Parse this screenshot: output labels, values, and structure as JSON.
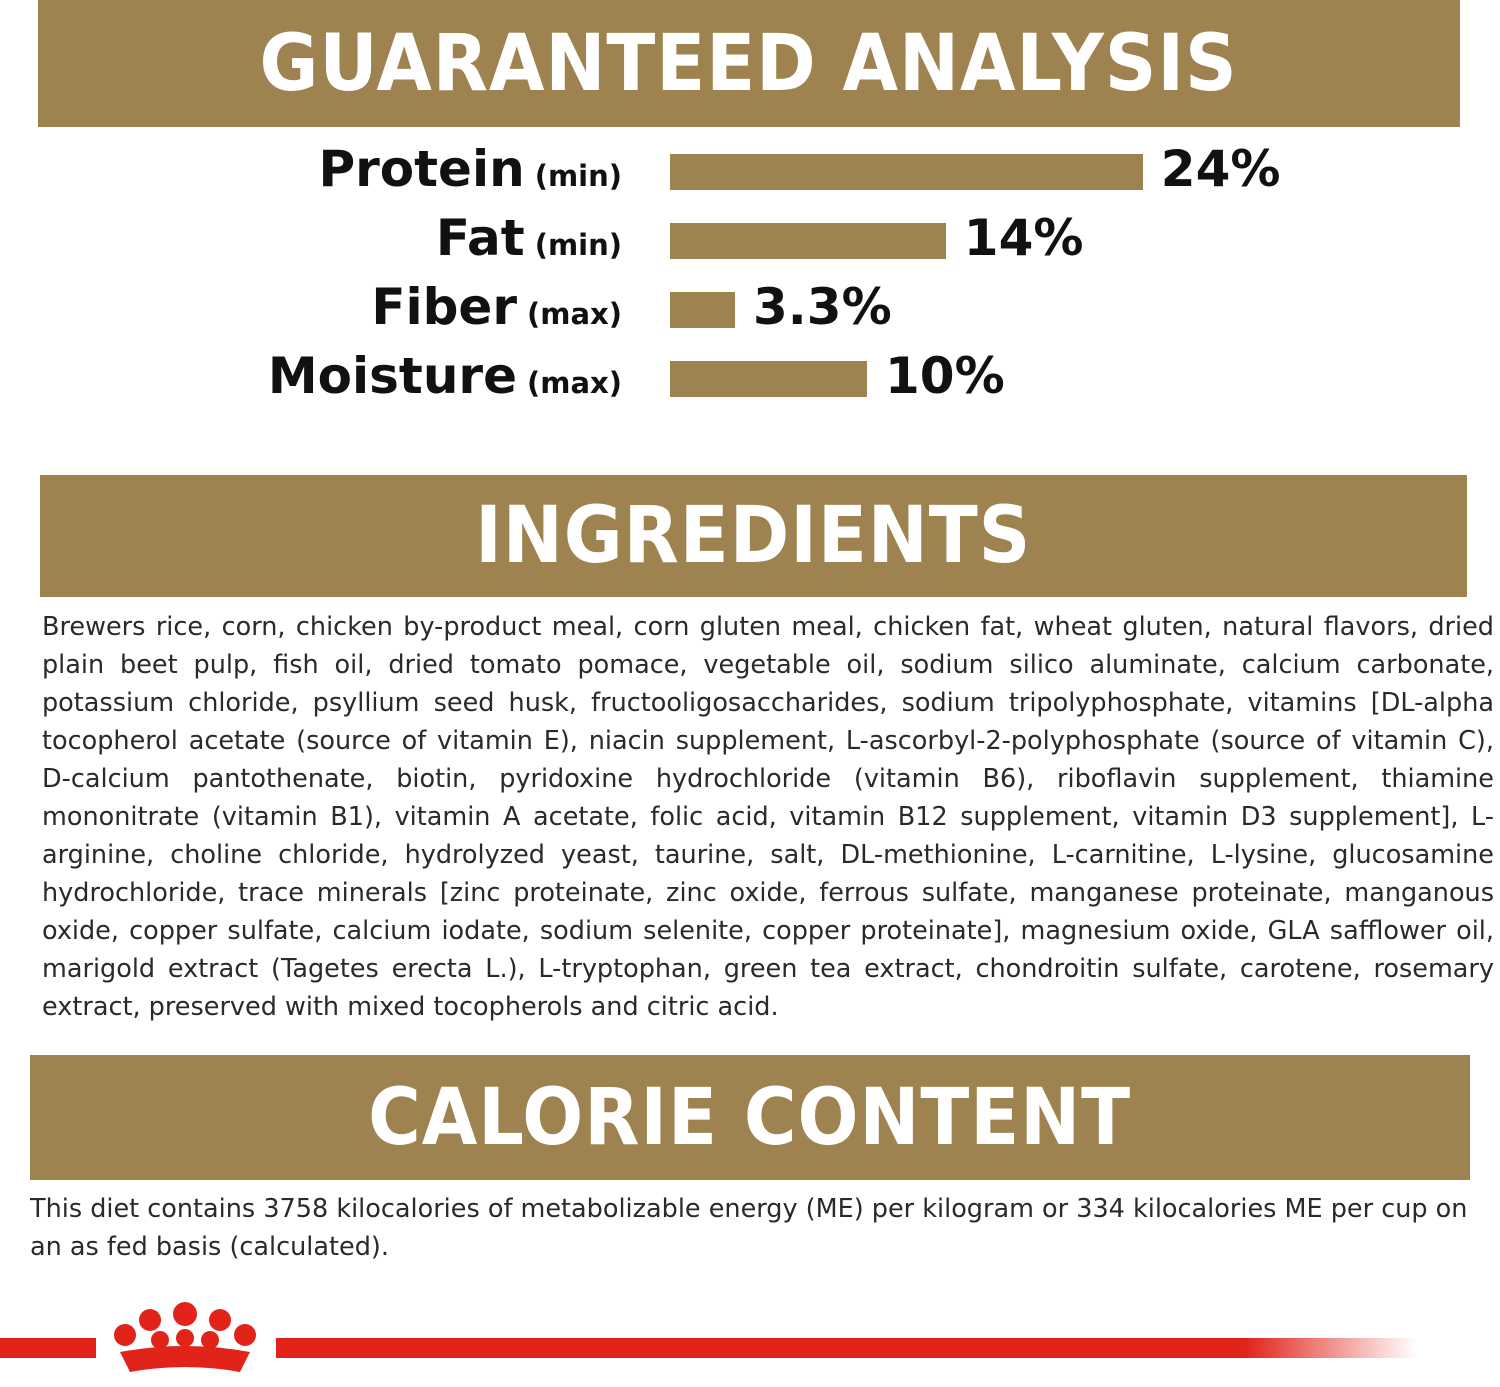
{
  "analysis": {
    "title": "GUARANTEED ANALYSIS",
    "items": [
      {
        "name": "Protein",
        "qualifier": "(min)",
        "value": 24,
        "value_label": "24%"
      },
      {
        "name": "Fat",
        "qualifier": "(min)",
        "value": 14,
        "value_label": "14%"
      },
      {
        "name": "Fiber",
        "qualifier": "(max)",
        "value": 3.3,
        "value_label": "3.3%"
      },
      {
        "name": "Moisture",
        "qualifier": "(max)",
        "value": 10,
        "value_label": "10%"
      }
    ]
  },
  "ingredients": {
    "title": "INGREDIENTS",
    "text": "Brewers rice, corn, chicken by-product meal, corn gluten meal, chicken fat, wheat gluten, natural flavors, dried plain beet pulp, fish oil, dried tomato pomace, vegetable oil, sodium silico aluminate, calcium carbonate, potassium chloride, psyllium seed husk, fructooligosaccharides, sodium tripolyphosphate, vitamins [DL-alpha tocopherol acetate (source of vitamin E), niacin supplement, L-ascorbyl-2-polyphosphate (source of vitamin C), D-calcium pantothenate, biotin, pyridoxine hydrochloride (vitamin B6), riboflavin supplement, thiamine mononitrate (vitamin B1), vitamin A acetate, folic acid, vitamin B12 supplement, vitamin D3 supplement], L-arginine, choline chloride, hydrolyzed yeast, taurine, salt, DL-methionine, L-carnitine, L-lysine, glucosamine hydrochloride, trace minerals [zinc proteinate, zinc oxide, ferrous sulfate, manganese proteinate, manganous oxide, copper sulfate, calcium iodate, sodium selenite, copper proteinate], magnesium oxide, GLA safflower oil, marigold extract (Tagetes erecta L.), L-tryptophan, green tea extract, chondroitin sulfate, carotene, rosemary extract, preserved with mixed tocopherols and citric acid."
  },
  "calorie": {
    "title": "CALORIE CONTENT",
    "text": "This diet contains 3758 kilocalories of metabolizable energy (ME) per kilogram or 334 kilocalories ME per cup on an as fed basis (calculated)."
  }
}
